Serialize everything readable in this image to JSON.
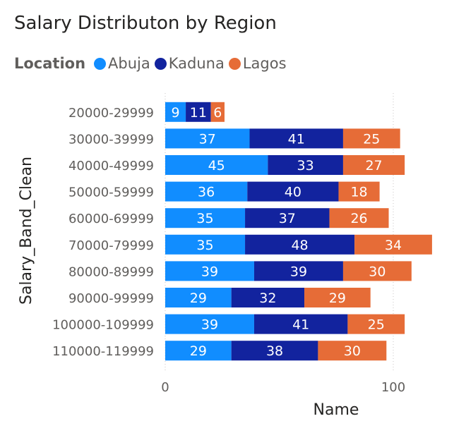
{
  "chart_data": {
    "type": "bar",
    "orientation": "horizontal",
    "stacked": true,
    "title": "Salary Distributon by Region",
    "xlabel": "Name",
    "ylabel": "Salary_Band_Clean",
    "xlim": [
      0,
      120
    ],
    "x_ticks": [
      "0",
      "100"
    ],
    "gridlines": "vertical-dotted",
    "legend": {
      "title": "Location",
      "position": "top-left"
    },
    "categories": [
      "20000-29999",
      "30000-39999",
      "40000-49999",
      "50000-59999",
      "60000-69999",
      "70000-79999",
      "80000-89999",
      "90000-99999",
      "100000-109999",
      "110000-119999"
    ],
    "series": [
      {
        "name": "Abuja",
        "color": "#118DFF",
        "values": [
          9,
          37,
          45,
          36,
          35,
          35,
          39,
          29,
          39,
          29
        ]
      },
      {
        "name": "Kaduna",
        "color": "#12239E",
        "values": [
          11,
          41,
          33,
          40,
          37,
          48,
          39,
          32,
          41,
          38
        ]
      },
      {
        "name": "Lagos",
        "color": "#E66C37",
        "values": [
          6,
          25,
          27,
          18,
          26,
          34,
          30,
          29,
          25,
          30
        ]
      }
    ]
  }
}
